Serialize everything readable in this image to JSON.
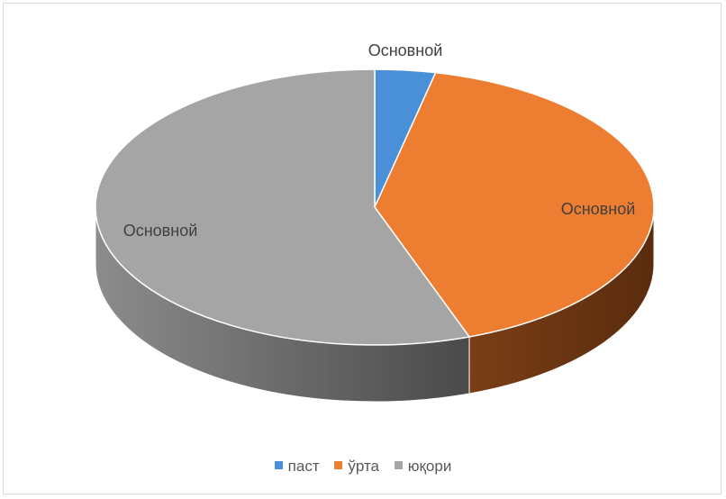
{
  "chart_data": {
    "type": "pie",
    "title": "",
    "categories": [
      "паст",
      "ўрта",
      "юқори"
    ],
    "values": [
      3.5,
      41,
      55.5
    ],
    "data_labels": [
      "Основной",
      "Основной",
      "Основной"
    ],
    "colors": [
      "#4a90d9",
      "#ed7d31",
      "#a5a5a5"
    ],
    "side_colors": [
      "#2e6aa5",
      "#6b3412",
      "#5e5e5e"
    ],
    "legend": {
      "position": "bottom",
      "entries": [
        "паст",
        "ўрта",
        "юқори"
      ]
    },
    "style": "3d"
  }
}
